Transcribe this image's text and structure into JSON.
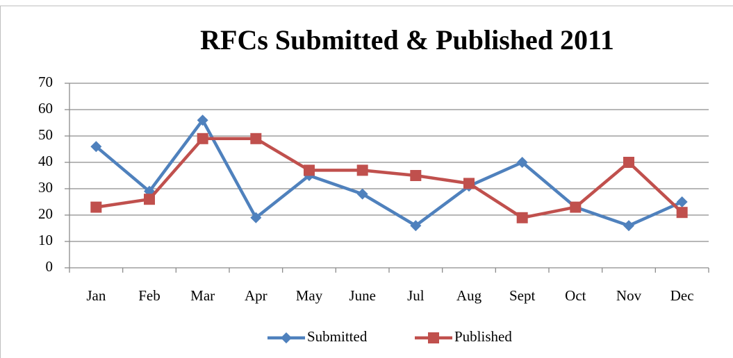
{
  "chart_data": {
    "type": "line",
    "title": "RFCs Submitted & Published 2011",
    "categories": [
      "Jan",
      "Feb",
      "Mar",
      "Apr",
      "May",
      "June",
      "Jul",
      "Aug",
      "Sept",
      "Oct",
      "Nov",
      "Dec"
    ],
    "series": [
      {
        "name": "Submitted",
        "color": "#4f81bd",
        "marker": "diamond",
        "values": [
          46,
          29,
          56,
          19,
          35,
          28,
          16,
          31,
          40,
          23,
          16,
          25
        ]
      },
      {
        "name": "Published",
        "color": "#c0504d",
        "marker": "square",
        "values": [
          23,
          26,
          49,
          49,
          37,
          37,
          35,
          32,
          19,
          23,
          40,
          21
        ]
      }
    ],
    "ylim": [
      0,
      70
    ],
    "yticks": [
      0,
      10,
      20,
      30,
      40,
      50,
      60,
      70
    ],
    "grid": true,
    "legend": "bottom"
  }
}
